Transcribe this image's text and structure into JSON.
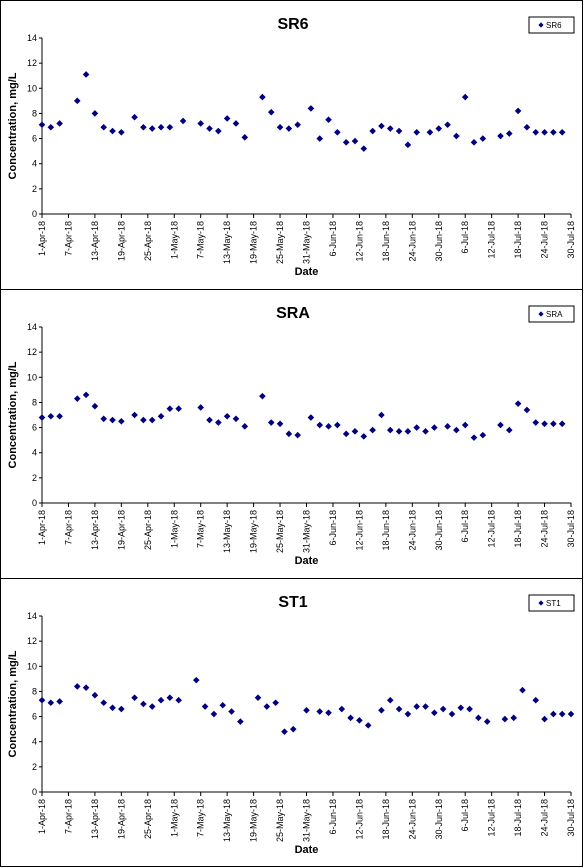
{
  "chart_data": [
    {
      "type": "scatter",
      "title": "SR6",
      "xlabel": "Date",
      "ylabel": "Concentration, mg/L",
      "ylim": [
        0,
        14
      ],
      "yticks": [
        0,
        2,
        4,
        6,
        8,
        10,
        12,
        14
      ],
      "xticks": [
        "1-Apr-18",
        "7-Apr-18",
        "13-Apr-18",
        "19-Apr-18",
        "25-Apr-18",
        "1-May-18",
        "7-May-18",
        "13-May-18",
        "19-May-18",
        "25-May-18",
        "31-May-18",
        "6-Jun-18",
        "12-Jun-18",
        "18-Jun-18",
        "24-Jun-18",
        "30-Jun-18",
        "6-Jul-18",
        "12-Jul-18",
        "18-Jul-18",
        "24-Jul-18",
        "30-Jul-18"
      ],
      "legend_position": "top-right",
      "color": "#000080",
      "series": [
        {
          "name": "SR6",
          "x": [
            "1-Apr-18",
            "3-Apr-18",
            "5-Apr-18",
            "9-Apr-18",
            "11-Apr-18",
            "13-Apr-18",
            "15-Apr-18",
            "17-Apr-18",
            "19-Apr-18",
            "22-Apr-18",
            "24-Apr-18",
            "26-Apr-18",
            "28-Apr-18",
            "30-Apr-18",
            "3-May-18",
            "7-May-18",
            "9-May-18",
            "11-May-18",
            "13-May-18",
            "15-May-18",
            "17-May-18",
            "21-May-18",
            "23-May-18",
            "25-May-18",
            "27-May-18",
            "29-May-18",
            "1-Jun-18",
            "3-Jun-18",
            "5-Jun-18",
            "7-Jun-18",
            "9-Jun-18",
            "11-Jun-18",
            "13-Jun-18",
            "15-Jun-18",
            "17-Jun-18",
            "19-Jun-18",
            "21-Jun-18",
            "23-Jun-18",
            "25-Jun-18",
            "28-Jun-18",
            "30-Jun-18",
            "2-Jul-18",
            "4-Jul-18",
            "6-Jul-18",
            "8-Jul-18",
            "10-Jul-18",
            "14-Jul-18",
            "16-Jul-18",
            "18-Jul-18",
            "20-Jul-18",
            "22-Jul-18",
            "24-Jul-18",
            "26-Jul-18",
            "28-Jul-18"
          ],
          "y": [
            7.1,
            6.9,
            7.2,
            9.0,
            11.1,
            8.0,
            6.9,
            6.6,
            6.5,
            7.7,
            6.9,
            6.8,
            6.9,
            6.9,
            7.4,
            7.2,
            6.8,
            6.6,
            7.6,
            7.2,
            6.1,
            9.3,
            8.1,
            6.9,
            6.8,
            7.1,
            8.4,
            6.0,
            7.5,
            6.5,
            5.7,
            5.8,
            5.2,
            6.6,
            7.0,
            6.8,
            6.6,
            5.5,
            6.5,
            6.5,
            6.8,
            7.1,
            6.2,
            9.3,
            5.7,
            6.0,
            6.2,
            6.4,
            8.2,
            6.9,
            6.5,
            6.5,
            6.5,
            6.5
          ]
        }
      ]
    },
    {
      "type": "scatter",
      "title": "SRA",
      "xlabel": "Date",
      "ylabel": "Concentration, mg/L",
      "ylim": [
        0,
        14
      ],
      "yticks": [
        0,
        2,
        4,
        6,
        8,
        10,
        12,
        14
      ],
      "xticks": [
        "1-Apr-18",
        "7-Apr-18",
        "13-Apr-18",
        "19-Apr-18",
        "25-Apr-18",
        "1-May-18",
        "7-May-18",
        "13-May-18",
        "19-May-18",
        "25-May-18",
        "31-May-18",
        "6-Jun-18",
        "12-Jun-18",
        "18-Jun-18",
        "24-Jun-18",
        "30-Jun-18",
        "6-Jul-18",
        "12-Jul-18",
        "18-Jul-18",
        "24-Jul-18",
        "30-Jul-18"
      ],
      "legend_position": "top-right",
      "color": "#000080",
      "series": [
        {
          "name": "SRA",
          "x": [
            "1-Apr-18",
            "3-Apr-18",
            "5-Apr-18",
            "9-Apr-18",
            "11-Apr-18",
            "13-Apr-18",
            "15-Apr-18",
            "17-Apr-18",
            "19-Apr-18",
            "22-Apr-18",
            "24-Apr-18",
            "26-Apr-18",
            "28-Apr-18",
            "30-Apr-18",
            "2-May-18",
            "7-May-18",
            "9-May-18",
            "11-May-18",
            "13-May-18",
            "15-May-18",
            "17-May-18",
            "21-May-18",
            "23-May-18",
            "25-May-18",
            "27-May-18",
            "29-May-18",
            "1-Jun-18",
            "3-Jun-18",
            "5-Jun-18",
            "7-Jun-18",
            "9-Jun-18",
            "11-Jun-18",
            "13-Jun-18",
            "15-Jun-18",
            "17-Jun-18",
            "19-Jun-18",
            "21-Jun-18",
            "23-Jun-18",
            "25-Jun-18",
            "27-Jun-18",
            "29-Jun-18",
            "2-Jul-18",
            "4-Jul-18",
            "6-Jul-18",
            "8-Jul-18",
            "10-Jul-18",
            "14-Jul-18",
            "16-Jul-18",
            "18-Jul-18",
            "20-Jul-18",
            "22-Jul-18",
            "24-Jul-18",
            "26-Jul-18",
            "28-Jul-18"
          ],
          "y": [
            6.8,
            6.9,
            6.9,
            8.3,
            8.6,
            7.7,
            6.7,
            6.6,
            6.5,
            7.0,
            6.6,
            6.6,
            6.9,
            7.5,
            7.5,
            7.6,
            6.6,
            6.4,
            6.9,
            6.7,
            6.1,
            8.5,
            6.4,
            6.3,
            5.5,
            5.4,
            6.8,
            6.2,
            6.1,
            6.2,
            5.5,
            5.7,
            5.3,
            5.8,
            7.0,
            5.8,
            5.7,
            5.7,
            6.0,
            5.7,
            6.0,
            6.1,
            5.8,
            6.2,
            5.2,
            5.4,
            6.2,
            5.8,
            7.9,
            7.4,
            6.4,
            6.3,
            6.3,
            6.3
          ]
        }
      ]
    },
    {
      "type": "scatter",
      "title": "ST1",
      "xlabel": "Date",
      "ylabel": "Concentration, mg/L",
      "ylim": [
        0,
        14
      ],
      "yticks": [
        0,
        2,
        4,
        6,
        8,
        10,
        12,
        14
      ],
      "xticks": [
        "1-Apr-18",
        "7-Apr-18",
        "13-Apr-18",
        "19-Apr-18",
        "25-Apr-18",
        "1-May-18",
        "7-May-18",
        "13-May-18",
        "19-May-18",
        "25-May-18",
        "31-May-18",
        "6-Jun-18",
        "12-Jun-18",
        "18-Jun-18",
        "24-Jun-18",
        "30-Jun-18",
        "6-Jul-18",
        "12-Jul-18",
        "18-Jul-18",
        "24-Jul-18",
        "30-Jul-18"
      ],
      "legend_position": "top-right",
      "color": "#000080",
      "series": [
        {
          "name": "ST1",
          "x": [
            "1-Apr-18",
            "3-Apr-18",
            "5-Apr-18",
            "9-Apr-18",
            "11-Apr-18",
            "13-Apr-18",
            "15-Apr-18",
            "17-Apr-18",
            "19-Apr-18",
            "22-Apr-18",
            "24-Apr-18",
            "26-Apr-18",
            "28-Apr-18",
            "30-Apr-18",
            "2-May-18",
            "6-May-18",
            "8-May-18",
            "10-May-18",
            "12-May-18",
            "14-May-18",
            "16-May-18",
            "20-May-18",
            "22-May-18",
            "24-May-18",
            "26-May-18",
            "28-May-18",
            "31-May-18",
            "3-Jun-18",
            "5-Jun-18",
            "8-Jun-18",
            "10-Jun-18",
            "12-Jun-18",
            "14-Jun-18",
            "17-Jun-18",
            "19-Jun-18",
            "21-Jun-18",
            "23-Jun-18",
            "25-Jun-18",
            "27-Jun-18",
            "29-Jun-18",
            "1-Jul-18",
            "3-Jul-18",
            "5-Jul-18",
            "7-Jul-18",
            "9-Jul-18",
            "11-Jul-18",
            "15-Jul-18",
            "17-Jul-18",
            "19-Jul-18",
            "22-Jul-18",
            "24-Jul-18",
            "26-Jul-18",
            "28-Jul-18",
            "30-Jul-18"
          ],
          "y": [
            7.3,
            7.1,
            7.2,
            8.4,
            8.3,
            7.7,
            7.1,
            6.7,
            6.6,
            7.5,
            7.0,
            6.8,
            7.3,
            7.5,
            7.3,
            8.9,
            6.8,
            6.2,
            6.9,
            6.4,
            5.6,
            7.5,
            6.8,
            7.1,
            4.8,
            5.0,
            6.5,
            6.4,
            6.3,
            6.6,
            5.9,
            5.7,
            5.3,
            6.5,
            7.3,
            6.6,
            6.2,
            6.8,
            6.8,
            6.3,
            6.6,
            6.2,
            6.7,
            6.6,
            5.9,
            5.6,
            5.8,
            5.9,
            8.1,
            7.3,
            5.8,
            6.2,
            6.2,
            6.2
          ]
        }
      ]
    }
  ]
}
